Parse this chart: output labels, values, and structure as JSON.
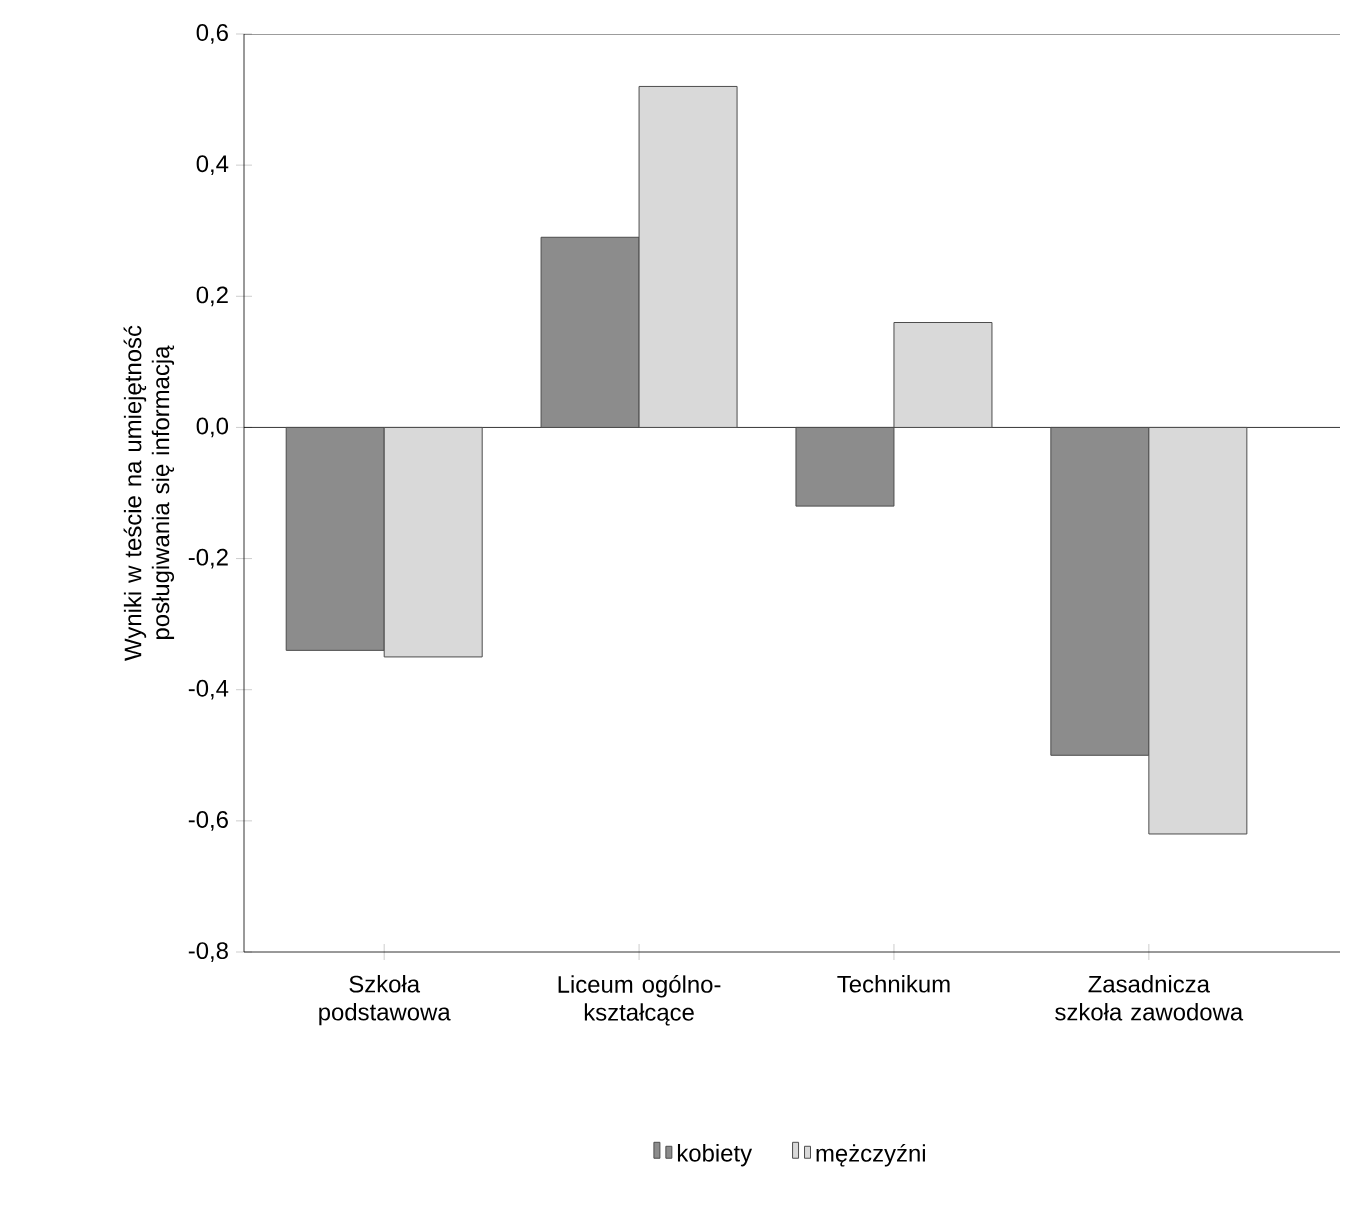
{
  "chart_data": {
    "type": "bar",
    "ylabel": "Wyniki w teście na umiejętność posługiwania się informacją",
    "categories": [
      "Szkoła podstawowa",
      "Liceum ogólno-kształcące",
      "Technikum",
      "Zasadnicza szkoła zawodowa"
    ],
    "series": [
      {
        "name": "kobiety",
        "color": "#8c8c8c",
        "values": [
          -0.34,
          0.29,
          -0.12,
          -0.5
        ]
      },
      {
        "name": "mężczyźni",
        "color": "#d9d9d9",
        "values": [
          -0.35,
          0.52,
          0.16,
          -0.62
        ]
      }
    ],
    "ylim": [
      -0.8,
      0.6
    ],
    "yticks": [
      {
        "value": -0.8,
        "label": "-0,8"
      },
      {
        "value": -0.6,
        "label": "-0,6"
      },
      {
        "value": -0.4,
        "label": "-0,4"
      },
      {
        "value": -0.2,
        "label": "-0,2"
      },
      {
        "value": 0.0,
        "label": "0,0"
      },
      {
        "value": 0.2,
        "label": "0,2"
      },
      {
        "value": 0.4,
        "label": "0,4"
      },
      {
        "value": 0.6,
        "label": "0,6"
      }
    ],
    "legend": "bottom"
  }
}
